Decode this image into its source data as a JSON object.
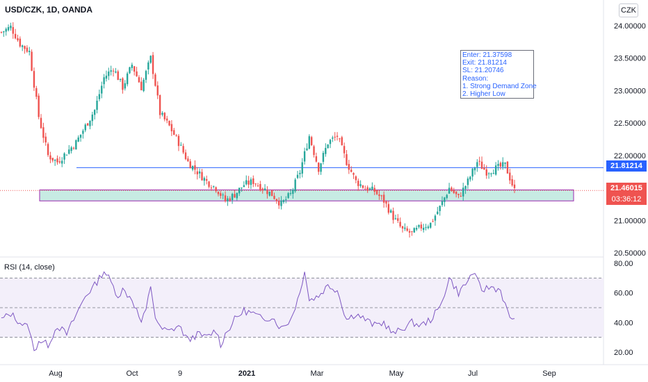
{
  "header": {
    "symbol": "USD/CZK, 1D, OANDA",
    "currency_button": "CZK"
  },
  "colors": {
    "up": "#26a69a",
    "down": "#ef5350",
    "blue_line": "#2962ff",
    "zone_fill": "#c7ebe3",
    "zone_border": "#9c27b0",
    "rsi_line": "#7e57c2",
    "rsi_band": "#f3effa",
    "price_tag": "#ef5350",
    "level_tag": "#2962ff"
  },
  "annotation": {
    "lines": [
      "Enter: 21.37598",
      "Exit: 21.81214",
      "SL: 21.20746",
      "Reason:",
      "1. Strong Demand Zone",
      "2. Higher Low"
    ]
  },
  "tags": {
    "level": "21.81214",
    "price": "21.46015",
    "countdown": "03:36:12"
  },
  "rsi": {
    "title": "RSI (14, close)"
  },
  "chart_data": [
    {
      "type": "candlestick",
      "title": "USD/CZK, 1D, OANDA",
      "y_ticks": [
        "24.00000",
        "23.50000",
        "23.00000",
        "22.50000",
        "22.00000",
        "21.00000",
        "20.50000"
      ],
      "ylim": [
        20.45,
        24.05
      ],
      "x_ticks": [
        "Aug",
        "Oct",
        "9",
        "2021",
        "Mar",
        "May",
        "Jul",
        "Sep"
      ],
      "closes_anchors": [
        [
          0,
          23.9
        ],
        [
          4,
          23.98
        ],
        [
          8,
          23.72
        ],
        [
          12,
          23.6
        ],
        [
          16,
          22.6
        ],
        [
          20,
          22.0
        ],
        [
          24,
          21.9
        ],
        [
          28,
          22.05
        ],
        [
          32,
          22.2
        ],
        [
          36,
          22.45
        ],
        [
          40,
          22.7
        ],
        [
          44,
          23.2
        ],
        [
          48,
          23.35
        ],
        [
          52,
          23.05
        ],
        [
          56,
          23.4
        ],
        [
          60,
          23.05
        ],
        [
          64,
          23.5
        ],
        [
          66,
          23.1
        ],
        [
          68,
          22.65
        ],
        [
          72,
          22.45
        ],
        [
          76,
          22.2
        ],
        [
          80,
          21.9
        ],
        [
          84,
          21.75
        ],
        [
          88,
          21.6
        ],
        [
          92,
          21.5
        ],
        [
          96,
          21.3
        ],
        [
          100,
          21.4
        ],
        [
          104,
          21.55
        ],
        [
          108,
          21.6
        ],
        [
          112,
          21.5
        ],
        [
          116,
          21.4
        ],
        [
          120,
          21.25
        ],
        [
          124,
          21.4
        ],
        [
          128,
          21.75
        ],
        [
          132,
          22.3
        ],
        [
          136,
          21.8
        ],
        [
          140,
          22.2
        ],
        [
          144,
          22.3
        ],
        [
          148,
          21.9
        ],
        [
          152,
          21.6
        ],
        [
          156,
          21.5
        ],
        [
          160,
          21.45
        ],
        [
          164,
          21.3
        ],
        [
          168,
          21.05
        ],
        [
          172,
          20.85
        ],
        [
          176,
          20.8
        ],
        [
          180,
          20.9
        ],
        [
          184,
          20.95
        ],
        [
          188,
          21.2
        ],
        [
          192,
          21.5
        ],
        [
          196,
          21.35
        ],
        [
          200,
          21.6
        ],
        [
          204,
          21.9
        ],
        [
          208,
          21.75
        ],
        [
          212,
          21.8
        ],
        [
          216,
          21.85
        ],
        [
          220,
          21.46
        ]
      ],
      "levels": {
        "exit": 21.81214,
        "zone_top": 21.47,
        "zone_bottom": 21.3,
        "current": 21.46015
      },
      "series": [
        {
          "name": "RSI (14, close)",
          "ylim": [
            15,
            85
          ],
          "y_ticks": [
            "80.00",
            "60.00",
            "40.00",
            "20.00"
          ],
          "bands": [
            30,
            50,
            70
          ],
          "anchors": [
            [
              0,
              42
            ],
            [
              4,
              46
            ],
            [
              8,
              40
            ],
            [
              12,
              36
            ],
            [
              14,
              20
            ],
            [
              16,
              28
            ],
            [
              20,
              25
            ],
            [
              24,
              38
            ],
            [
              28,
              32
            ],
            [
              32,
              45
            ],
            [
              36,
              58
            ],
            [
              40,
              65
            ],
            [
              44,
              75
            ],
            [
              46,
              70
            ],
            [
              50,
              58
            ],
            [
              52,
              62
            ],
            [
              56,
              56
            ],
            [
              60,
              40
            ],
            [
              62,
              48
            ],
            [
              64,
              65
            ],
            [
              66,
              44
            ],
            [
              68,
              36
            ],
            [
              72,
              34
            ],
            [
              76,
              38
            ],
            [
              80,
              28
            ],
            [
              84,
              32
            ],
            [
              88,
              30
            ],
            [
              92,
              35
            ],
            [
              94,
              25
            ],
            [
              96,
              32
            ],
            [
              100,
              42
            ],
            [
              104,
              48
            ],
            [
              108,
              46
            ],
            [
              112,
              42
            ],
            [
              116,
              44
            ],
            [
              120,
              36
            ],
            [
              124,
              42
            ],
            [
              128,
              60
            ],
            [
              130,
              76
            ],
            [
              132,
              55
            ],
            [
              136,
              58
            ],
            [
              140,
              65
            ],
            [
              144,
              62
            ],
            [
              148,
              42
            ],
            [
              152,
              46
            ],
            [
              156,
              42
            ],
            [
              160,
              38
            ],
            [
              164,
              40
            ],
            [
              168,
              32
            ],
            [
              172,
              36
            ],
            [
              176,
              40
            ],
            [
              180,
              38
            ],
            [
              184,
              42
            ],
            [
              188,
              50
            ],
            [
              192,
              70
            ],
            [
              196,
              60
            ],
            [
              200,
              68
            ],
            [
              202,
              74
            ],
            [
              206,
              62
            ],
            [
              210,
              64
            ],
            [
              214,
              62
            ],
            [
              216,
              52
            ],
            [
              218,
              42
            ],
            [
              220,
              44
            ]
          ]
        }
      ]
    }
  ]
}
